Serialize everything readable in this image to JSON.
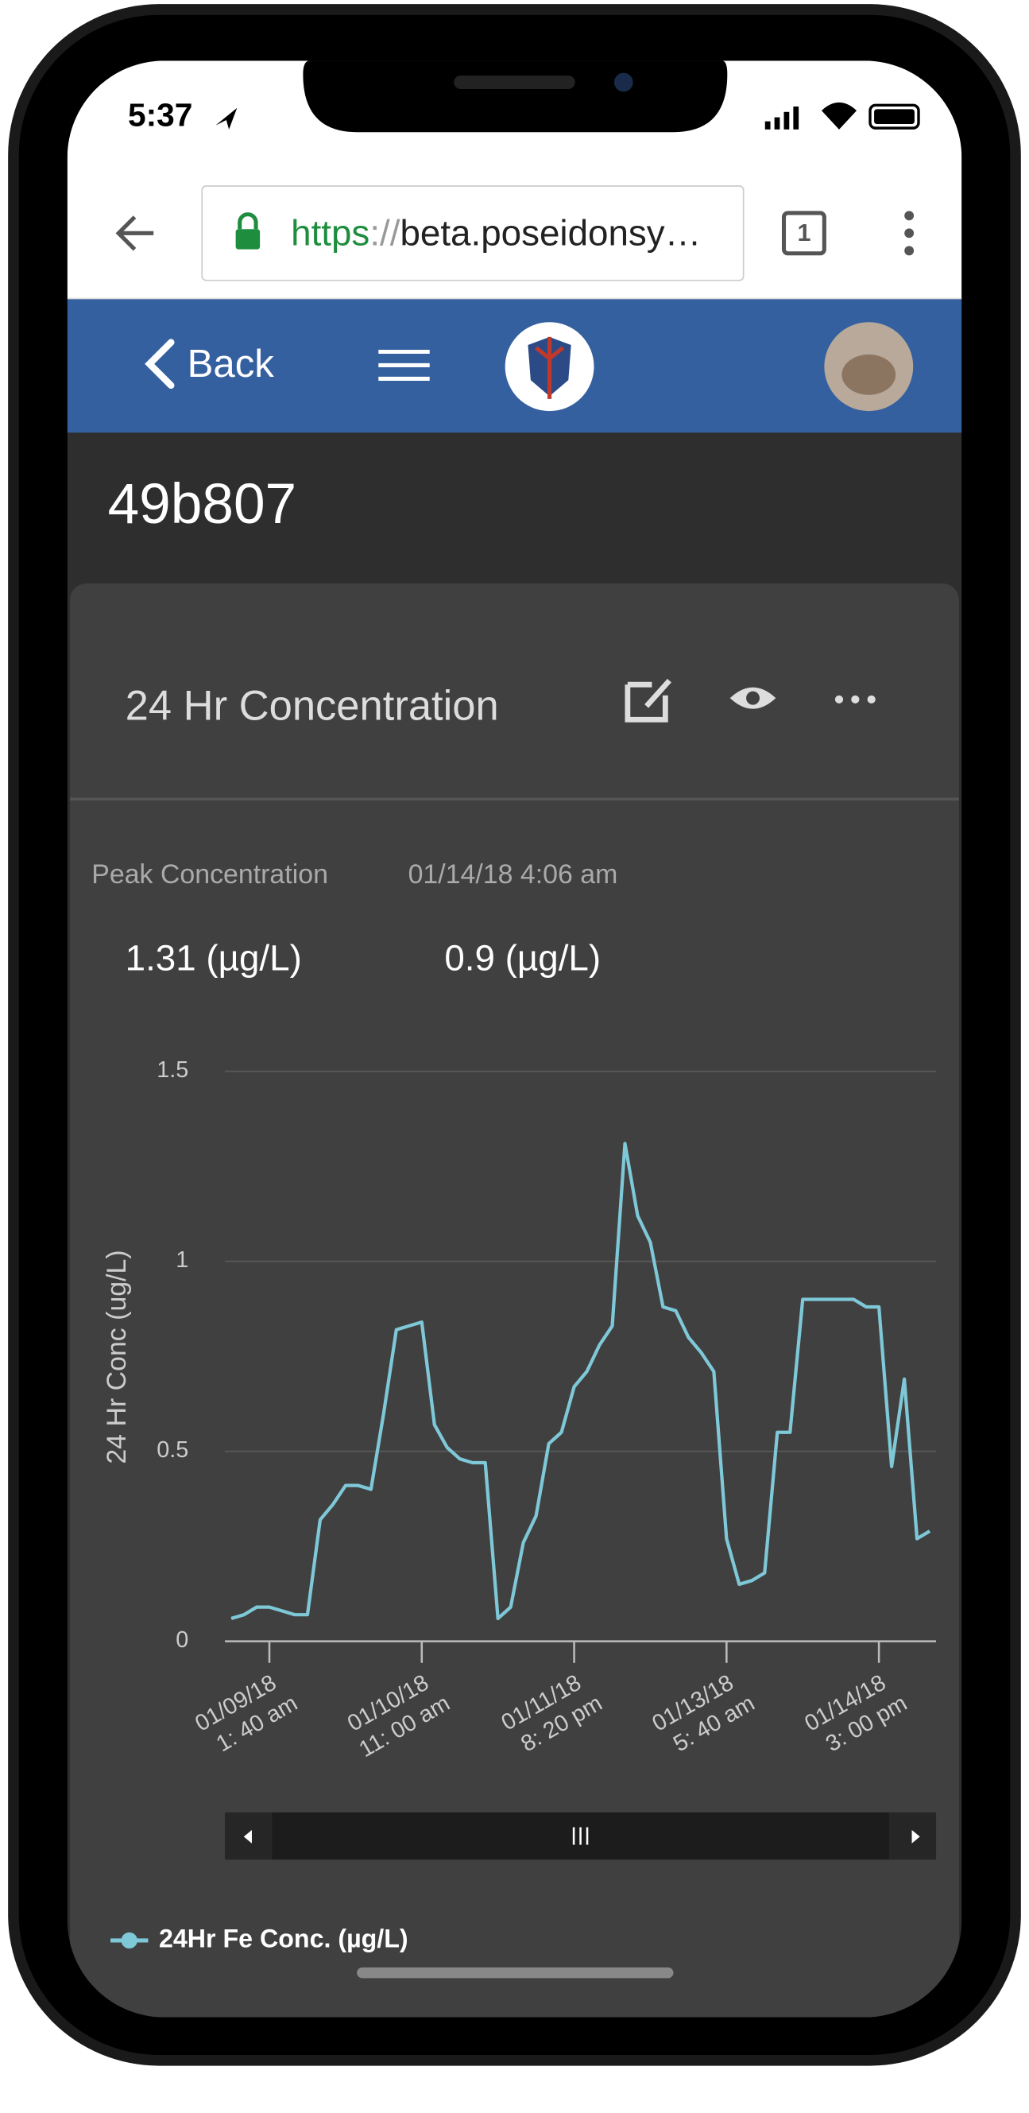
{
  "status_bar": {
    "time": "5:37"
  },
  "browser": {
    "url_scheme": "https",
    "url_separator": "://",
    "url_rest": "beta.poseidonsy…",
    "tab_count": "1"
  },
  "app_header": {
    "back": "Back"
  },
  "page": {
    "title": "49b807"
  },
  "card": {
    "title": "24 Hr Concentration",
    "stats": {
      "labels": [
        "Peak Concentration",
        "01/14/18 4:06 am"
      ],
      "values": [
        "1.31 (µg/L)",
        "0.9 (µg/L)"
      ]
    }
  },
  "chart_data": {
    "type": "line",
    "ylabel": "24 Hr Conc (ug/L)",
    "series": [
      {
        "name": "24Hr Fe Conc. (µg/L)",
        "color": "#7ec8d8",
        "values": [
          0.06,
          0.07,
          0.09,
          0.09,
          0.08,
          0.07,
          0.07,
          0.32,
          0.36,
          0.41,
          0.41,
          0.4,
          0.6,
          0.82,
          0.83,
          0.84,
          0.57,
          0.51,
          0.48,
          0.47,
          0.47,
          0.06,
          0.09,
          0.26,
          0.33,
          0.52,
          0.55,
          0.67,
          0.71,
          0.78,
          0.83,
          1.31,
          1.12,
          1.05,
          0.88,
          0.87,
          0.8,
          0.76,
          0.71,
          0.27,
          0.15,
          0.16,
          0.18,
          0.55,
          0.55,
          0.9,
          0.9,
          0.9,
          0.9,
          0.9,
          0.88,
          0.88,
          0.46,
          0.69,
          0.27,
          0.29
        ]
      }
    ],
    "xlim": [
      -0.5,
      55.5
    ],
    "xticks": [
      {
        "value": 3,
        "label": "01/09/18\n1: 40 am"
      },
      {
        "value": 15,
        "label": "01/10/18\n11: 00 am"
      },
      {
        "value": 27,
        "label": "01/11/18\n8: 20 pm"
      },
      {
        "value": 39,
        "label": "01/13/18\n5: 40 am"
      },
      {
        "value": 51,
        "label": "01/14/18\n3: 00 pm"
      }
    ],
    "ylim": [
      0,
      1.5
    ],
    "yticks": [
      0,
      0.5,
      1,
      1.5
    ],
    "grid": true
  }
}
